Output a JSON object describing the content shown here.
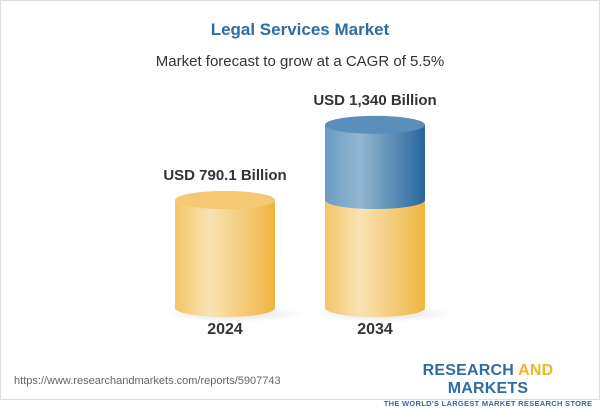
{
  "chart_data": {
    "type": "bar",
    "style": "3d-cylinder",
    "title": "Legal Services Market",
    "subtitle": "Market forecast to grow at a CAGR of 5.5%",
    "categories": [
      "2024",
      "2034"
    ],
    "values": [
      790.1,
      1340
    ],
    "value_labels": [
      "USD 790.1 Billion",
      "USD 1,340 Billion"
    ],
    "unit": "USD Billion",
    "grid": false,
    "colors": {
      "base": "#f5c35a",
      "growth": "#3f7bad",
      "title": "#2e6da4"
    }
  },
  "footer": {
    "url": "https://www.researchandmarkets.com/reports/5907743",
    "logo_line1_a": "RESEARCH ",
    "logo_line1_b": "AND",
    "logo_line1_c": " MARKETS",
    "logo_line2": "THE WORLD'S LARGEST MARKET RESEARCH STORE"
  }
}
